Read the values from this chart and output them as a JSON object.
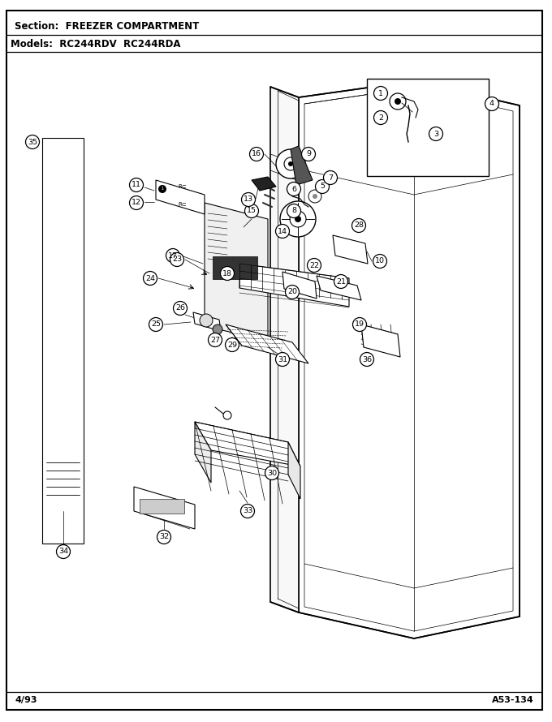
{
  "title_section": "Section:  FREEZER COMPARTMENT",
  "title_models": "Models:  RC244RDV  RC244RDA",
  "footer_left": "4/93",
  "footer_right": "A53-134",
  "bg_color": "#ffffff",
  "figure_width": 6.8,
  "figure_height": 8.9,
  "dpi": 100,
  "label_r": 8.5,
  "label_fs": 6.8,
  "lw_heavy": 1.2,
  "lw_med": 0.8,
  "lw_light": 0.5,
  "lw_thin": 0.35
}
